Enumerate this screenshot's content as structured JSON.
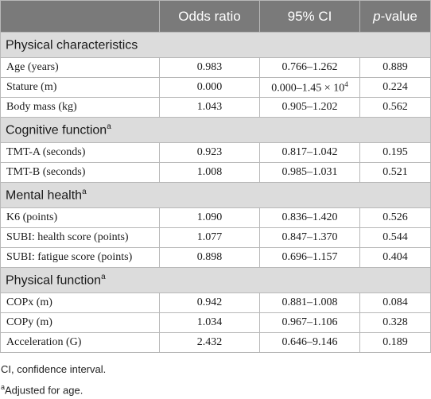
{
  "header": {
    "col0": "",
    "col1": "Odds ratio",
    "col2": "95% CI",
    "col3_italic": "p",
    "col3_rest": "-value"
  },
  "sections": [
    {
      "title": "Physical characteristics",
      "sup": "",
      "rows": [
        {
          "label": "Age (years)",
          "or": "0.983",
          "ci": "0.766–1.262",
          "p": "0.889"
        },
        {
          "label": "Stature (m)",
          "or": "0.000",
          "ci": "0.000–1.45 × 10",
          "ci_sup": "4",
          "p": "0.224"
        },
        {
          "label": "Body mass (kg)",
          "or": "1.043",
          "ci": "0.905–1.202",
          "p": "0.562"
        }
      ]
    },
    {
      "title": "Cognitive function",
      "sup": "a",
      "rows": [
        {
          "label": "TMT-A (seconds)",
          "or": "0.923",
          "ci": "0.817–1.042",
          "p": "0.195"
        },
        {
          "label": "TMT-B (seconds)",
          "or": "1.008",
          "ci": "0.985–1.031",
          "p": "0.521"
        }
      ]
    },
    {
      "title": "Mental health",
      "sup": "a",
      "rows": [
        {
          "label": "K6 (points)",
          "or": "1.090",
          "ci": "0.836–1.420",
          "p": "0.526"
        },
        {
          "label": "SUBI: health score (points)",
          "or": "1.077",
          "ci": "0.847–1.370",
          "p": "0.544"
        },
        {
          "label": "SUBI: fatigue score (points)",
          "or": "0.898",
          "ci": "0.696–1.157",
          "p": "0.404"
        }
      ]
    },
    {
      "title": "Physical function",
      "sup": "a",
      "rows": [
        {
          "label": "COPx (m)",
          "or": "0.942",
          "ci": "0.881–1.008",
          "p": "0.084"
        },
        {
          "label": "COPy (m)",
          "or": "1.034",
          "ci": "0.967–1.106",
          "p": "0.328"
        },
        {
          "label": "Acceleration (G)",
          "or": "2.432",
          "ci": "0.646–9.146",
          "p": "0.189"
        }
      ]
    }
  ],
  "notes": {
    "line1": "CI, confidence interval.",
    "line2_sup": "a",
    "line2": "Adjusted for age."
  }
}
